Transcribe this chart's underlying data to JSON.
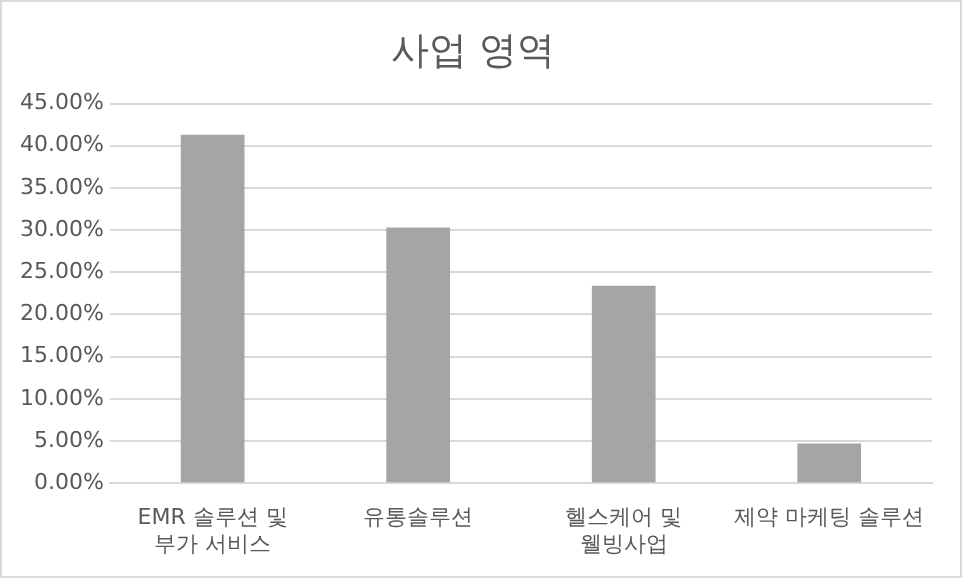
{
  "chart_data": {
    "type": "bar",
    "title": "사업 영역",
    "categories": [
      "EMR 솔루션 및 부가 서비스",
      "유통솔루션",
      "헬스케어 및 웰빙사업",
      "제약 마케팅 솔루션"
    ],
    "values": [
      41.3,
      30.3,
      23.4,
      4.7
    ],
    "color": "#a5a5a5",
    "ylim": [
      0,
      45
    ],
    "yticks": [
      {
        "value": 0,
        "label": "0.00%"
      },
      {
        "value": 5,
        "label": "5.00%"
      },
      {
        "value": 10,
        "label": "10.00%"
      },
      {
        "value": 15,
        "label": "15.00%"
      },
      {
        "value": 20,
        "label": "20.00%"
      },
      {
        "value": 25,
        "label": "25.00%"
      },
      {
        "value": 30,
        "label": "30.00%"
      },
      {
        "value": 35,
        "label": "35.00%"
      },
      {
        "value": 40,
        "label": "40.00%"
      },
      {
        "value": 45,
        "label": "45.00%"
      }
    ],
    "grid": "y",
    "legend": false
  }
}
